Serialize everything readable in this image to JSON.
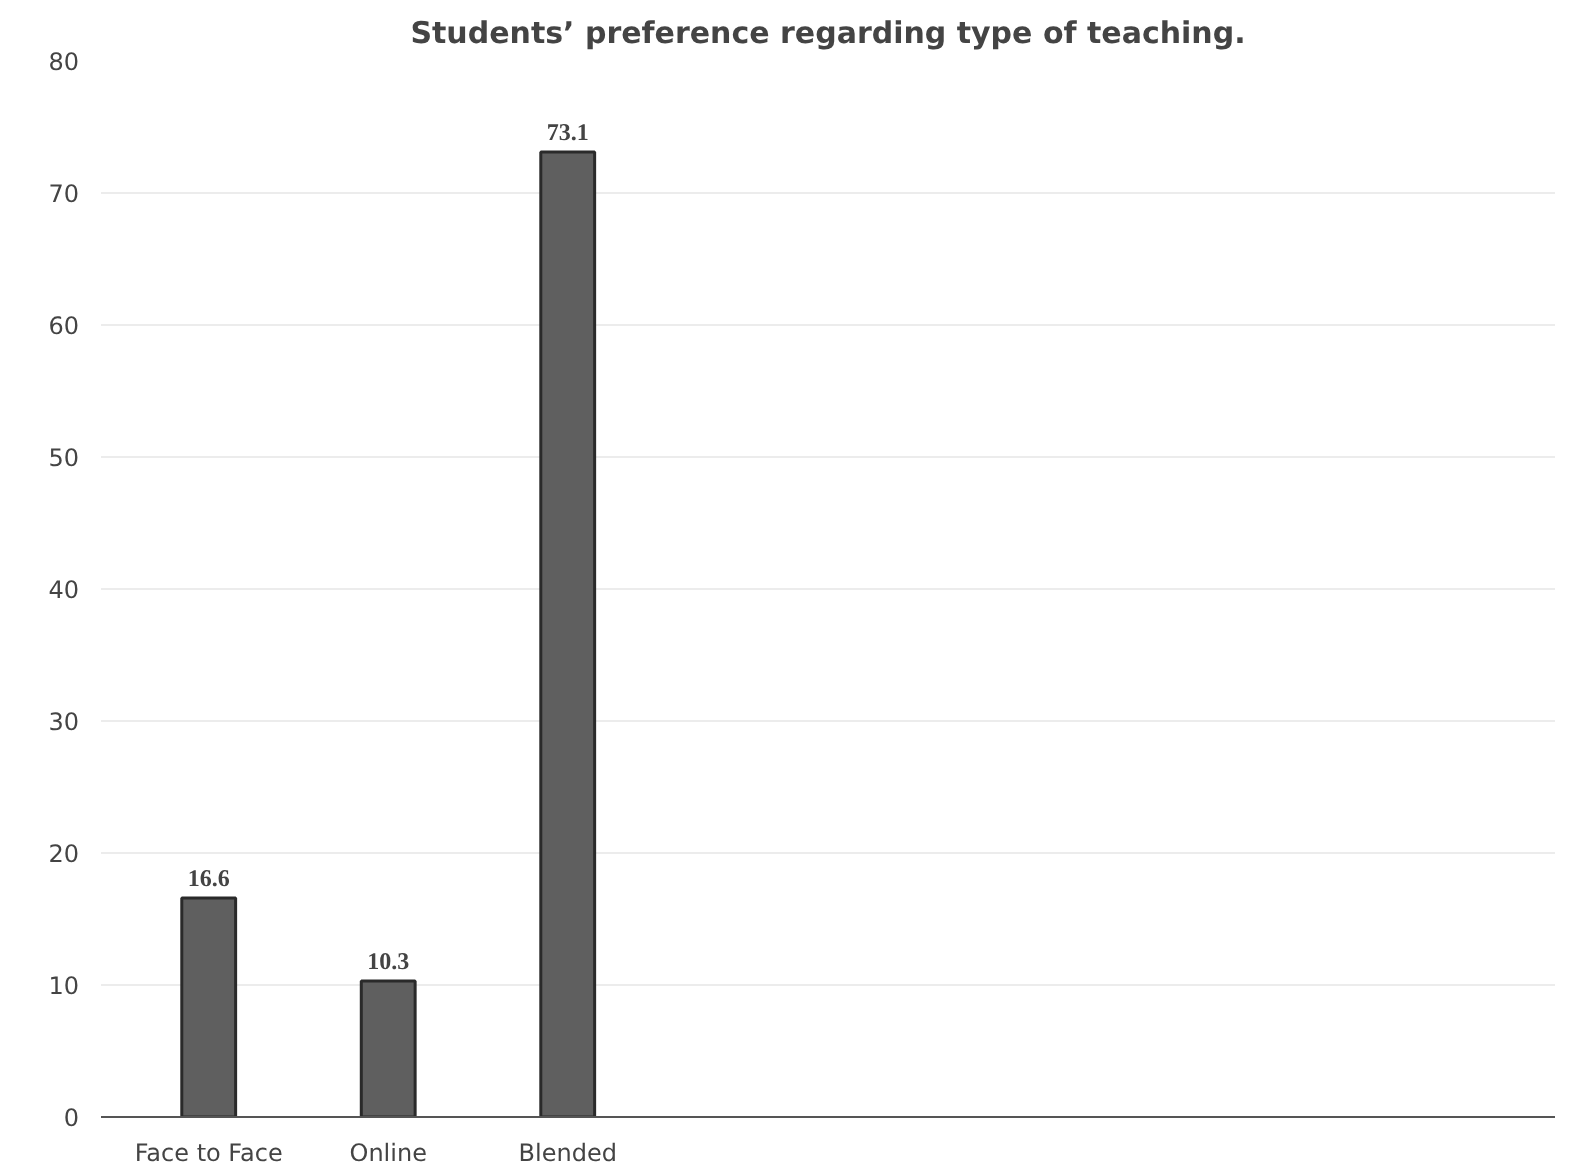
{
  "chart_data": {
    "type": "bar",
    "title": "Students’ preference regarding type of teaching.",
    "categories": [
      "Face to Face",
      "Online",
      "Blended"
    ],
    "values": [
      16.6,
      10.3,
      73.1
    ],
    "color": "#5f5f5f",
    "ylim": [
      0,
      80
    ],
    "yticks": [
      0,
      10,
      20,
      30,
      40,
      50,
      60,
      70,
      80
    ],
    "grid": "y",
    "data_labels": true
  }
}
